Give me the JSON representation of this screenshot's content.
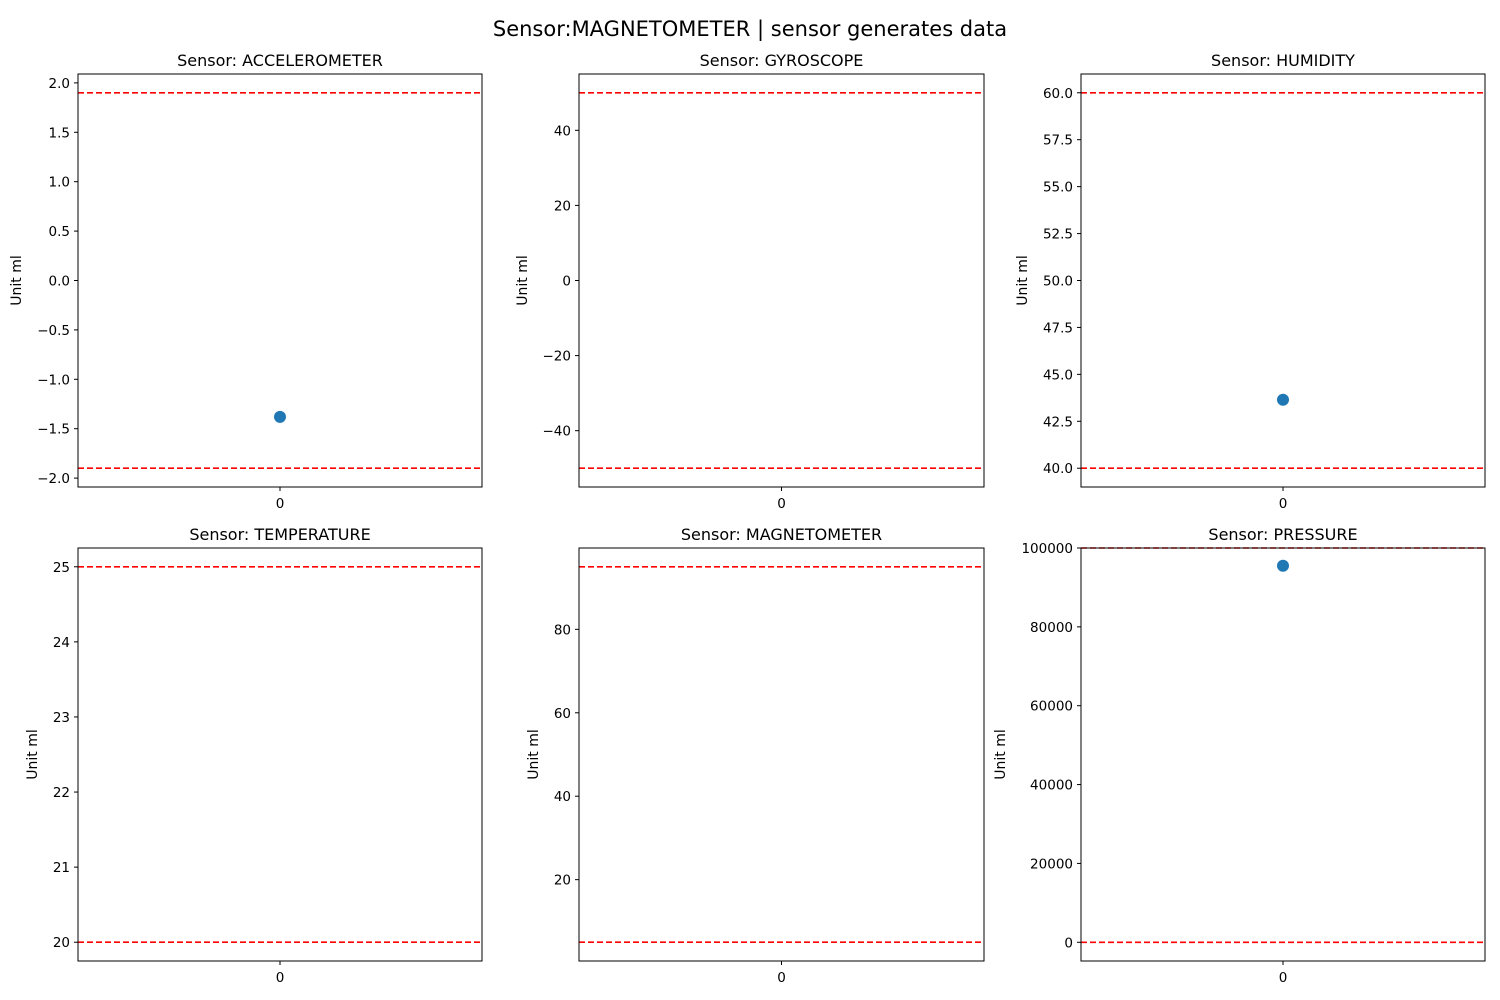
{
  "figure": {
    "suptitle": "Sensor:MAGNETOMETER | sensor generates data"
  },
  "style": {
    "point_color": "#1f77b4",
    "limit_color": "#ff0000",
    "limit_line": "dashed"
  },
  "chart_data": [
    {
      "type": "scatter",
      "title": "Sensor: ACCELEROMETER",
      "xlabel": "",
      "ylabel": "Unit ml",
      "x_ticks": [
        "0"
      ],
      "ylim": [
        -2.09,
        2.09
      ],
      "y_ticks": [
        -2.0,
        -1.5,
        -1.0,
        -0.5,
        0.0,
        0.5,
        1.0,
        1.5,
        2.0
      ],
      "y_tick_labels": [
        "−2.0",
        "−1.5",
        "−1.0",
        "−0.5",
        "0.0",
        "0.5",
        "1.0",
        "1.5",
        "2.0"
      ],
      "reference_lines": [
        -1.9,
        1.9
      ],
      "points": [
        {
          "x": "0",
          "y": -1.38
        }
      ]
    },
    {
      "type": "scatter",
      "title": "Sensor: GYROSCOPE",
      "xlabel": "",
      "ylabel": "Unit ml",
      "x_ticks": [
        "0"
      ],
      "ylim": [
        -55,
        55
      ],
      "y_ticks": [
        -40,
        -20,
        0,
        20,
        40
      ],
      "y_tick_labels": [
        "−40",
        "−20",
        "0",
        "20",
        "40"
      ],
      "reference_lines": [
        -50,
        50
      ],
      "points": []
    },
    {
      "type": "scatter",
      "title": "Sensor: HUMIDITY",
      "xlabel": "",
      "ylabel": "Unit ml",
      "x_ticks": [
        "0"
      ],
      "ylim": [
        39,
        61
      ],
      "y_ticks": [
        40.0,
        42.5,
        45.0,
        47.5,
        50.0,
        52.5,
        55.0,
        57.5,
        60.0
      ],
      "y_tick_labels": [
        "40.0",
        "42.5",
        "45.0",
        "47.5",
        "50.0",
        "52.5",
        "55.0",
        "57.5",
        "60.0"
      ],
      "reference_lines": [
        40,
        60
      ],
      "points": [
        {
          "x": "0",
          "y": 43.65
        }
      ]
    },
    {
      "type": "scatter",
      "title": "Sensor: TEMPERATURE",
      "xlabel": "",
      "ylabel": "Unit ml",
      "x_ticks": [
        "0"
      ],
      "ylim": [
        19.75,
        25.25
      ],
      "y_ticks": [
        20,
        21,
        22,
        23,
        24,
        25
      ],
      "y_tick_labels": [
        "20",
        "21",
        "22",
        "23",
        "24",
        "25"
      ],
      "reference_lines": [
        20,
        25
      ],
      "points": []
    },
    {
      "type": "scatter",
      "title": "Sensor: MAGNETOMETER",
      "xlabel": "",
      "ylabel": "Unit ml",
      "x_ticks": [
        "0"
      ],
      "ylim": [
        0.5,
        99.5
      ],
      "y_ticks": [
        20,
        40,
        60,
        80
      ],
      "y_tick_labels": [
        "20",
        "40",
        "60",
        "80"
      ],
      "reference_lines": [
        5,
        95
      ],
      "points": []
    },
    {
      "type": "scatter",
      "title": "Sensor: PRESSURE",
      "xlabel": "",
      "ylabel": "Unit ml",
      "x_ticks": [
        "0"
      ],
      "ylim": [
        -4750,
        100000
      ],
      "y_ticks": [
        0,
        20000,
        40000,
        60000,
        80000,
        100000
      ],
      "y_tick_labels": [
        "0",
        "20000",
        "40000",
        "60000",
        "80000",
        "100000"
      ],
      "reference_lines": [
        0,
        100000
      ],
      "points": [
        {
          "x": "0",
          "y": 95500
        }
      ]
    }
  ]
}
